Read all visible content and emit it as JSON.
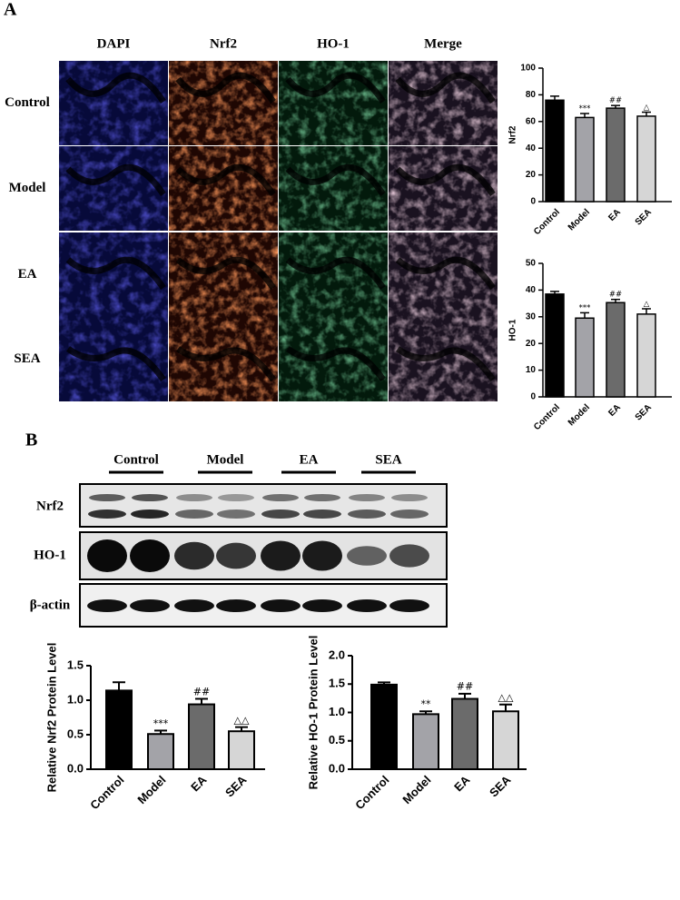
{
  "panel_labels": [
    "A",
    "B"
  ],
  "if_columns": [
    "DAPI",
    "Nrf2",
    "HO-1",
    "Merge"
  ],
  "if_rows": [
    "Control",
    "Model",
    "EA",
    "SEA"
  ],
  "blot_groups": [
    "Control",
    "Model",
    "EA",
    "SEA"
  ],
  "blot_rows": [
    "Nrf2",
    "HO-1",
    "β-actin"
  ],
  "chart_data": [
    {
      "type": "bar",
      "y_label": "Nrf2",
      "categories": [
        "Control",
        "Model",
        "EA",
        "SEA"
      ],
      "values": [
        76,
        63,
        70,
        64
      ],
      "errors": [
        3,
        3,
        2,
        3
      ],
      "annotations": [
        null,
        "***",
        "##",
        "△"
      ],
      "colors": [
        "#000000",
        "#a3a3a8",
        "#6b6b6b",
        "#d6d6d6"
      ],
      "ylim": [
        0,
        100
      ],
      "yticks": [
        0,
        20,
        40,
        60,
        80,
        100
      ]
    },
    {
      "type": "bar",
      "y_label": "HO-1",
      "categories": [
        "Control",
        "Model",
        "EA",
        "SEA"
      ],
      "values": [
        38.5,
        29.5,
        35.3,
        31
      ],
      "errors": [
        1,
        2,
        1.2,
        2
      ],
      "annotations": [
        null,
        "***",
        "##",
        "△"
      ],
      "colors": [
        "#000000",
        "#a3a3a8",
        "#6b6b6b",
        "#d6d6d6"
      ],
      "ylim": [
        0,
        50
      ],
      "yticks": [
        0,
        10,
        20,
        30,
        40,
        50
      ]
    },
    {
      "type": "bar",
      "y_label": "Relative Nrf2 Protein Level",
      "categories": [
        "Control",
        "Model",
        "EA",
        "SEA"
      ],
      "values": [
        1.14,
        0.51,
        0.94,
        0.55
      ],
      "errors": [
        0.12,
        0.05,
        0.08,
        0.06
      ],
      "annotations": [
        null,
        "***",
        "##",
        "△△"
      ],
      "colors": [
        "#000000",
        "#a3a3a8",
        "#6b6b6b",
        "#d6d6d6"
      ],
      "ylim": [
        0,
        1.5
      ],
      "yticks": [
        {
          "value": 0,
          "label": "0.0"
        },
        0.5,
        {
          "value": 1,
          "label": "1.0"
        },
        1.5
      ]
    },
    {
      "type": "bar",
      "y_label": "Relative HO-1 Protein Level",
      "categories": [
        "Control",
        "Model",
        "EA",
        "SEA"
      ],
      "values": [
        1.49,
        0.97,
        1.24,
        1.02
      ],
      "errors": [
        0.04,
        0.05,
        0.09,
        0.12
      ],
      "annotations": [
        null,
        "**",
        "##",
        "△△"
      ],
      "colors": [
        "#000000",
        "#a3a3a8",
        "#6b6b6b",
        "#d6d6d6"
      ],
      "ylim": [
        0,
        2
      ],
      "yticks": [
        {
          "value": 0,
          "label": "0.0"
        },
        0.5,
        {
          "value": 1,
          "label": "1.0"
        },
        1.5,
        {
          "value": 2,
          "label": "2.0"
        }
      ]
    }
  ]
}
